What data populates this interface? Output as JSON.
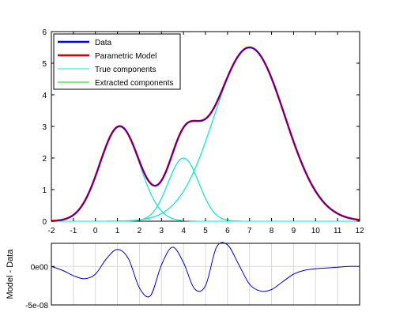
{
  "chart_data": [
    {
      "type": "line",
      "title": "",
      "xlabel": "",
      "ylabel": "",
      "xlim": [
        -2,
        12
      ],
      "ylim": [
        0,
        6
      ],
      "x_ticks": [
        "-2",
        "-1",
        "0",
        "1",
        "2",
        "3",
        "4",
        "5",
        "6",
        "7",
        "8",
        "9",
        "10",
        "11",
        "12"
      ],
      "y_ticks": [
        "0",
        "1",
        "2",
        "3",
        "4",
        "5",
        "6"
      ],
      "grid": false,
      "legend_position": "top-left",
      "series": [
        {
          "name": "Data",
          "color": "#0000ff",
          "role": "sum"
        },
        {
          "name": "Parametric Model",
          "color": "#dd0000",
          "role": "model"
        },
        {
          "name": "True components",
          "color": "#00e5e5",
          "role": "true"
        },
        {
          "name": "Extracted components",
          "color": "#00dd00",
          "role": "extracted"
        }
      ],
      "components": [
        {
          "center": 1.1,
          "amplitude": 3.0,
          "sigma": 0.9
        },
        {
          "center": 4.0,
          "amplitude": 2.0,
          "sigma": 0.7
        },
        {
          "center": 7.0,
          "amplitude": 5.5,
          "sigma": 1.6
        }
      ],
      "x_range": [
        -2,
        12
      ]
    },
    {
      "type": "line",
      "title": "",
      "xlabel": "",
      "ylabel": "Model - Data",
      "xlim": [
        -2,
        12
      ],
      "ylim": [
        -5e-08,
        3e-08
      ],
      "y_ticks": [
        "0e00",
        "-5e-08"
      ],
      "grid": true,
      "series": [
        {
          "name": "",
          "color": "#0000cc",
          "x": [
            -2,
            -1.5,
            -1,
            -0.5,
            0,
            0.5,
            1,
            1.5,
            2,
            2.5,
            3,
            3.5,
            4,
            4.5,
            5,
            5.5,
            6,
            6.5,
            7,
            7.5,
            8,
            8.5,
            9,
            9.5,
            10,
            10.5,
            11,
            11.5,
            12
          ],
          "y": [
            0,
            -5e-09,
            -1.2e-08,
            -1.6e-08,
            -1e-08,
            1e-08,
            2.2e-08,
            1e-08,
            -2.8e-08,
            -3.8e-08,
            2e-09,
            2.5e-08,
            5e-09,
            -2.9e-08,
            -2.5e-08,
            2.5e-08,
            2.8e-08,
            3e-09,
            -2.3e-08,
            -3.2e-08,
            -3e-08,
            -2e-08,
            -1e-08,
            -5e-09,
            -3e-09,
            -2e-09,
            -1e-09,
            0,
            0
          ]
        }
      ]
    }
  ]
}
